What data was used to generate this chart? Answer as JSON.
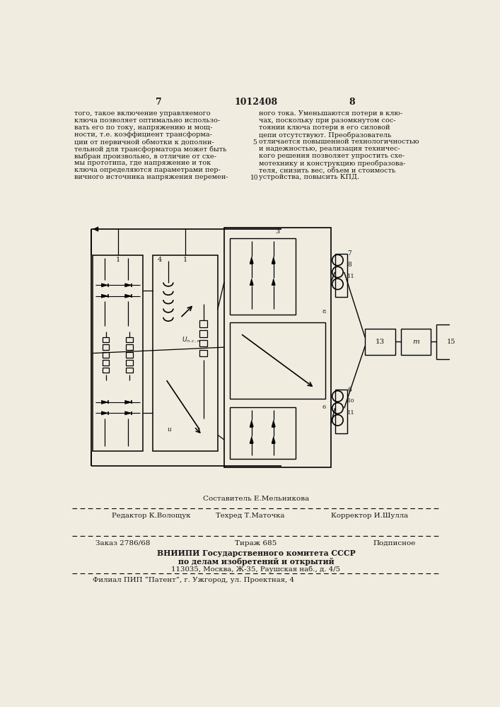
{
  "background_color": "#f0ece0",
  "page_num_left": "7",
  "page_num_center": "1012408",
  "page_num_right": "8",
  "text_left_lines": [
    "того, такое включение управляемого",
    "ключа позволяет оптимально использо-",
    "вать его по току, напряжению и мощ-",
    "ности, т.е. коэффициент трансформа-",
    "ции от первичной обмотки к дополни-",
    "тельной для трансформатора может быть",
    "выбран произвольно, в отличие от схе-",
    "мы прототипа, где напряжение и ток",
    "ключа определяются параметрами пер-",
    "вичного источника напряжения перемен-"
  ],
  "text_right_lines": [
    "ного тока. Уменьшаются потери в клю-",
    "чах, поскольку при разомкнутом сос-",
    "тоянии ключа потери в его силовой",
    "цепи отсутствуют. Преобразователь",
    "отличается повышенной технологичностью",
    "и надежностью, реализация техничес-",
    "кого решения позволяет упростить схе-",
    "мотехнику и конструкцию преобразова-",
    "теля, снизить вес, объем и стоимость",
    "устройства, повысить КПД."
  ],
  "footer_composer": "Составитель Е.Мельникова",
  "footer_editor": "Редактор К.Волощук",
  "footer_techred": "Техред Т.Маточка",
  "footer_corrector": "Корректор И.Шулла",
  "footer_order": "Заказ 2786/68",
  "footer_tirazh": "Тираж 685",
  "footer_podpis": "Подписное",
  "footer_vniiipi1": "ВНИИПИ Государственного комитета СССР",
  "footer_vniiipi2": "по делам изобретений и открытий",
  "footer_vniiipi3": "113035, Москва, Ж-35, Раушская наб., д. 4/5",
  "footer_filial": "Филиал ПИП “Патент”, г. Ужгород, ул. Проектная, 4"
}
